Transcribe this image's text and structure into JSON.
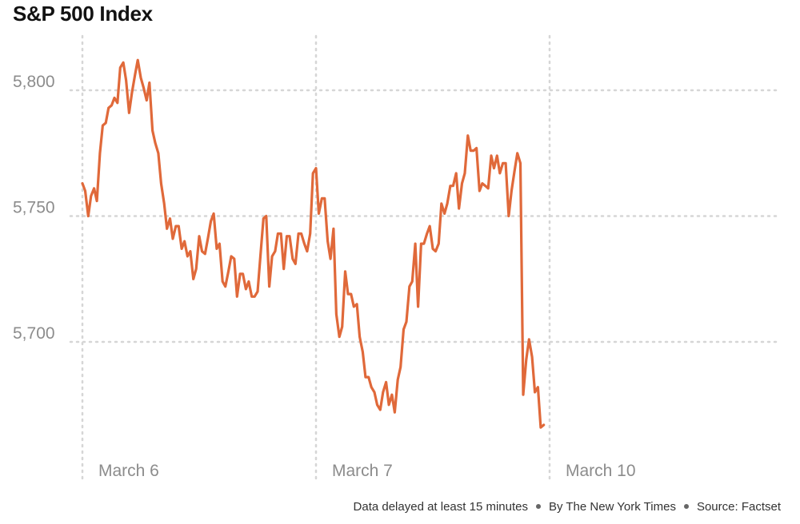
{
  "colors": {
    "line": "#e0693a",
    "grid": "#d6d6d6",
    "text": "#8c8c8c"
  },
  "footer": {
    "delay": "Data delayed at least 15 minutes",
    "byline": "By The New York Times",
    "source": "Source: Factset"
  },
  "chart_data": {
    "type": "line",
    "title": "S&P 500 Index",
    "xlabel": "",
    "ylabel": "",
    "ylim": [
      5660,
      5815
    ],
    "xlim": [
      0,
      3
    ],
    "grid": true,
    "yticks": [
      {
        "value": 5800,
        "label": "5,800"
      },
      {
        "value": 5750,
        "label": "5,750"
      },
      {
        "value": 5700,
        "label": "5,700"
      }
    ],
    "xticks": [
      {
        "value": 0,
        "label": "March 6"
      },
      {
        "value": 1,
        "label": "March 7"
      },
      {
        "value": 2,
        "label": "March 10"
      }
    ],
    "series": [
      {
        "points": [
          [
            0.0,
            5763
          ],
          [
            0.012,
            5760
          ],
          [
            0.025,
            5750
          ],
          [
            0.037,
            5758
          ],
          [
            0.05,
            5761
          ],
          [
            0.062,
            5756
          ],
          [
            0.075,
            5775
          ],
          [
            0.087,
            5786
          ],
          [
            0.1,
            5787
          ],
          [
            0.112,
            5793
          ],
          [
            0.125,
            5794
          ],
          [
            0.137,
            5797
          ],
          [
            0.15,
            5795
          ],
          [
            0.162,
            5809
          ],
          [
            0.175,
            5811
          ],
          [
            0.187,
            5804
          ],
          [
            0.2,
            5791
          ],
          [
            0.212,
            5799
          ],
          [
            0.225,
            5806
          ],
          [
            0.237,
            5812
          ],
          [
            0.25,
            5805
          ],
          [
            0.262,
            5801
          ],
          [
            0.275,
            5796
          ],
          [
            0.287,
            5803
          ],
          [
            0.3,
            5784
          ],
          [
            0.312,
            5779
          ],
          [
            0.325,
            5775
          ],
          [
            0.337,
            5763
          ],
          [
            0.35,
            5755
          ],
          [
            0.362,
            5745
          ],
          [
            0.375,
            5749
          ],
          [
            0.387,
            5741
          ],
          [
            0.4,
            5746
          ],
          [
            0.412,
            5746
          ],
          [
            0.425,
            5737
          ],
          [
            0.437,
            5740
          ],
          [
            0.45,
            5734
          ],
          [
            0.462,
            5736
          ],
          [
            0.475,
            5725
          ],
          [
            0.487,
            5729
          ],
          [
            0.5,
            5742
          ],
          [
            0.512,
            5736
          ],
          [
            0.525,
            5735
          ],
          [
            0.537,
            5741
          ],
          [
            0.55,
            5748
          ],
          [
            0.562,
            5751
          ],
          [
            0.575,
            5737
          ],
          [
            0.587,
            5739
          ],
          [
            0.6,
            5724
          ],
          [
            0.612,
            5722
          ],
          [
            0.625,
            5728
          ],
          [
            0.637,
            5734
          ],
          [
            0.65,
            5733
          ],
          [
            0.662,
            5718
          ],
          [
            0.675,
            5727
          ],
          [
            0.687,
            5727
          ],
          [
            0.7,
            5721
          ],
          [
            0.712,
            5724
          ],
          [
            0.725,
            5718
          ],
          [
            0.737,
            5718
          ],
          [
            0.75,
            5720
          ],
          [
            0.762,
            5734
          ],
          [
            0.775,
            5749
          ],
          [
            0.787,
            5750
          ],
          [
            0.8,
            5722
          ],
          [
            0.812,
            5734
          ],
          [
            0.825,
            5736
          ],
          [
            0.837,
            5743
          ],
          [
            0.85,
            5743
          ],
          [
            0.862,
            5729
          ],
          [
            0.875,
            5742
          ],
          [
            0.887,
            5742
          ],
          [
            0.9,
            5733
          ],
          [
            0.912,
            5731
          ],
          [
            0.925,
            5743
          ],
          [
            0.937,
            5743
          ],
          [
            0.95,
            5739
          ],
          [
            0.962,
            5736
          ],
          [
            0.975,
            5743
          ],
          [
            0.987,
            5767
          ],
          [
            1.0,
            5769
          ],
          [
            1.012,
            5751
          ],
          [
            1.025,
            5757
          ],
          [
            1.037,
            5757
          ],
          [
            1.05,
            5740
          ],
          [
            1.062,
            5733
          ],
          [
            1.075,
            5745
          ],
          [
            1.087,
            5711
          ],
          [
            1.1,
            5702
          ],
          [
            1.112,
            5706
          ],
          [
            1.125,
            5728
          ],
          [
            1.137,
            5719
          ],
          [
            1.15,
            5719
          ],
          [
            1.162,
            5714
          ],
          [
            1.175,
            5715
          ],
          [
            1.187,
            5702
          ],
          [
            1.2,
            5696
          ],
          [
            1.212,
            5686
          ],
          [
            1.225,
            5686
          ],
          [
            1.237,
            5682
          ],
          [
            1.25,
            5680
          ],
          [
            1.262,
            5675
          ],
          [
            1.275,
            5673
          ],
          [
            1.287,
            5680
          ],
          [
            1.3,
            5684
          ],
          [
            1.312,
            5675
          ],
          [
            1.325,
            5679
          ],
          [
            1.337,
            5672
          ],
          [
            1.35,
            5685
          ],
          [
            1.362,
            5690
          ],
          [
            1.375,
            5705
          ],
          [
            1.387,
            5708
          ],
          [
            1.4,
            5722
          ],
          [
            1.412,
            5724
          ],
          [
            1.425,
            5739
          ],
          [
            1.437,
            5714
          ],
          [
            1.45,
            5739
          ],
          [
            1.462,
            5739
          ],
          [
            1.475,
            5743
          ],
          [
            1.487,
            5746
          ],
          [
            1.5,
            5737
          ],
          [
            1.512,
            5736
          ],
          [
            1.525,
            5739
          ],
          [
            1.537,
            5755
          ],
          [
            1.55,
            5751
          ],
          [
            1.562,
            5755
          ],
          [
            1.575,
            5762
          ],
          [
            1.587,
            5762
          ],
          [
            1.6,
            5767
          ],
          [
            1.612,
            5753
          ],
          [
            1.625,
            5763
          ],
          [
            1.637,
            5767
          ],
          [
            1.65,
            5782
          ],
          [
            1.662,
            5776
          ],
          [
            1.675,
            5776
          ],
          [
            1.687,
            5777
          ],
          [
            1.7,
            5760
          ],
          [
            1.712,
            5763
          ],
          [
            1.725,
            5762
          ],
          [
            1.737,
            5761
          ],
          [
            1.75,
            5774
          ],
          [
            1.762,
            5769
          ],
          [
            1.775,
            5774
          ],
          [
            1.787,
            5767
          ],
          [
            1.8,
            5771
          ],
          [
            1.812,
            5771
          ],
          [
            1.825,
            5750
          ],
          [
            1.837,
            5760
          ],
          [
            1.85,
            5768
          ],
          [
            1.862,
            5775
          ],
          [
            1.875,
            5771
          ],
          [
            1.887,
            5679
          ],
          [
            1.9,
            5693
          ],
          [
            1.912,
            5701
          ],
          [
            1.925,
            5694
          ],
          [
            1.937,
            5680
          ],
          [
            1.95,
            5682
          ],
          [
            1.962,
            5666
          ],
          [
            1.975,
            5667
          ]
        ]
      }
    ]
  }
}
